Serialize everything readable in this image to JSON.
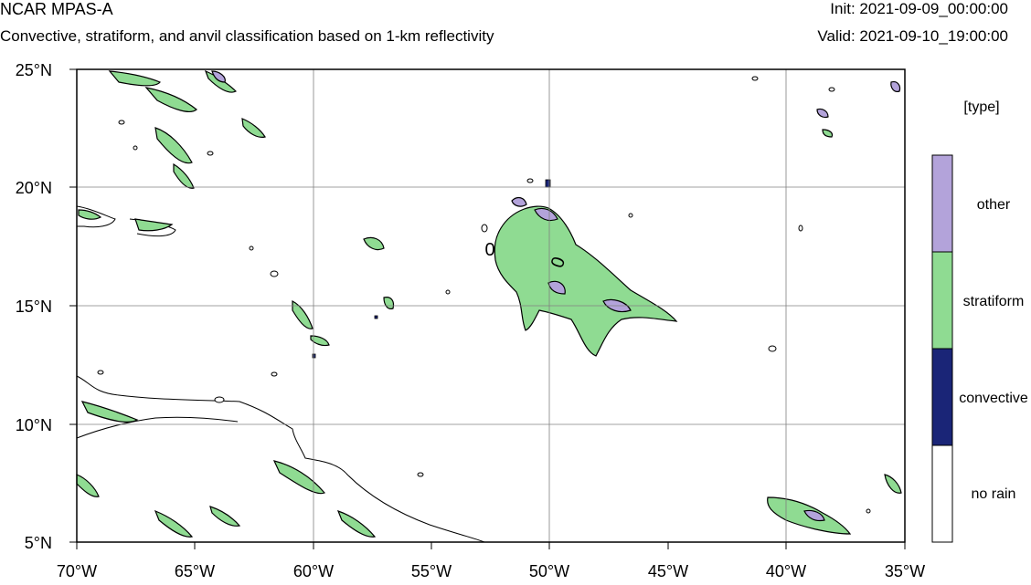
{
  "header": {
    "title": "NCAR MPAS-A",
    "subtitle": "Convective, stratiform, and anvil classification based on 1-km reflectivity",
    "init": "Init: 2021-09-09_00:00:00",
    "valid": "Valid: 2021-09-10_19:00:00"
  },
  "map": {
    "lat_range": [
      5,
      25
    ],
    "lon_range": [
      -70,
      -35
    ],
    "lat_ticks": [
      "5°N",
      "10°N",
      "15°N",
      "20°N",
      "25°N"
    ],
    "lon_ticks": [
      "70°W",
      "65°W",
      "60°W",
      "55°W",
      "50°W",
      "45°W",
      "40°W",
      "35°W"
    ],
    "contour_label": "0"
  },
  "legend": {
    "title": "[type]",
    "categories": [
      {
        "label": "other",
        "color": "#b3a3da"
      },
      {
        "label": "stratiform",
        "color": "#8fdb92"
      },
      {
        "label": "convective",
        "color": "#1a2577"
      },
      {
        "label": "no rain",
        "color": "#ffffff"
      }
    ]
  }
}
